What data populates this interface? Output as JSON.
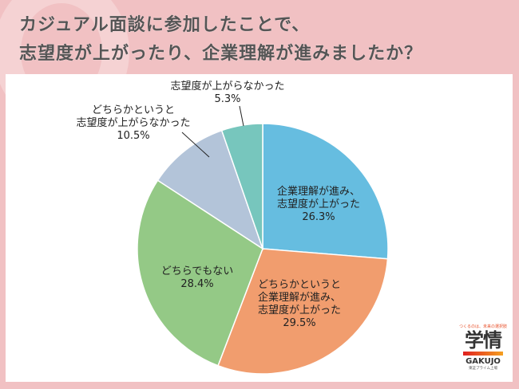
{
  "title": {
    "line1": "カジュアル面談に参加したことで、",
    "line2": "志望度が上がったり、企業理解が進みましたか？"
  },
  "chart_data": {
    "type": "pie",
    "title": "カジュアル面談に参加したことで、志望度が上がったり、企業理解が進みましたか？",
    "start_angle": "12 o'clock",
    "direction": "clockwise",
    "categories": [
      "企業理解が進み、志望度が上がった",
      "どちらかというと企業理解が進み、志望度が上がった",
      "どちらでもない",
      "どちらかというと志望度が上がらなかった",
      "志望度が上がらなかった"
    ],
    "values": [
      26.3,
      29.5,
      28.4,
      10.5,
      5.3
    ],
    "colors": [
      "#66bde0",
      "#f19d6e",
      "#94c986",
      "#b3c4d9",
      "#77c6bd"
    ],
    "legend": "none (direct labels)"
  },
  "labels": {
    "s1": {
      "l1": "企業理解が進み、",
      "l2": "志望度が上がった",
      "pct": "26.3%"
    },
    "s2": {
      "l1": "どちらかというと",
      "l2": "企業理解が進み、",
      "l3": "志望度が上がった",
      "pct": "29.5%"
    },
    "s3": {
      "l1": "どちらでもない",
      "pct": "28.4%"
    },
    "s4": {
      "l1": "どちらかというと",
      "l2": "志望度が上がらなかった",
      "pct": "10.5%"
    },
    "s5": {
      "l1": "志望度が上がらなかった",
      "pct": "5.3%"
    }
  },
  "logo": {
    "tagline": "つくるのは、未来の選択肢",
    "kanji": "学情",
    "english": "GAKUJO",
    "sub": "東証プライム上場"
  }
}
